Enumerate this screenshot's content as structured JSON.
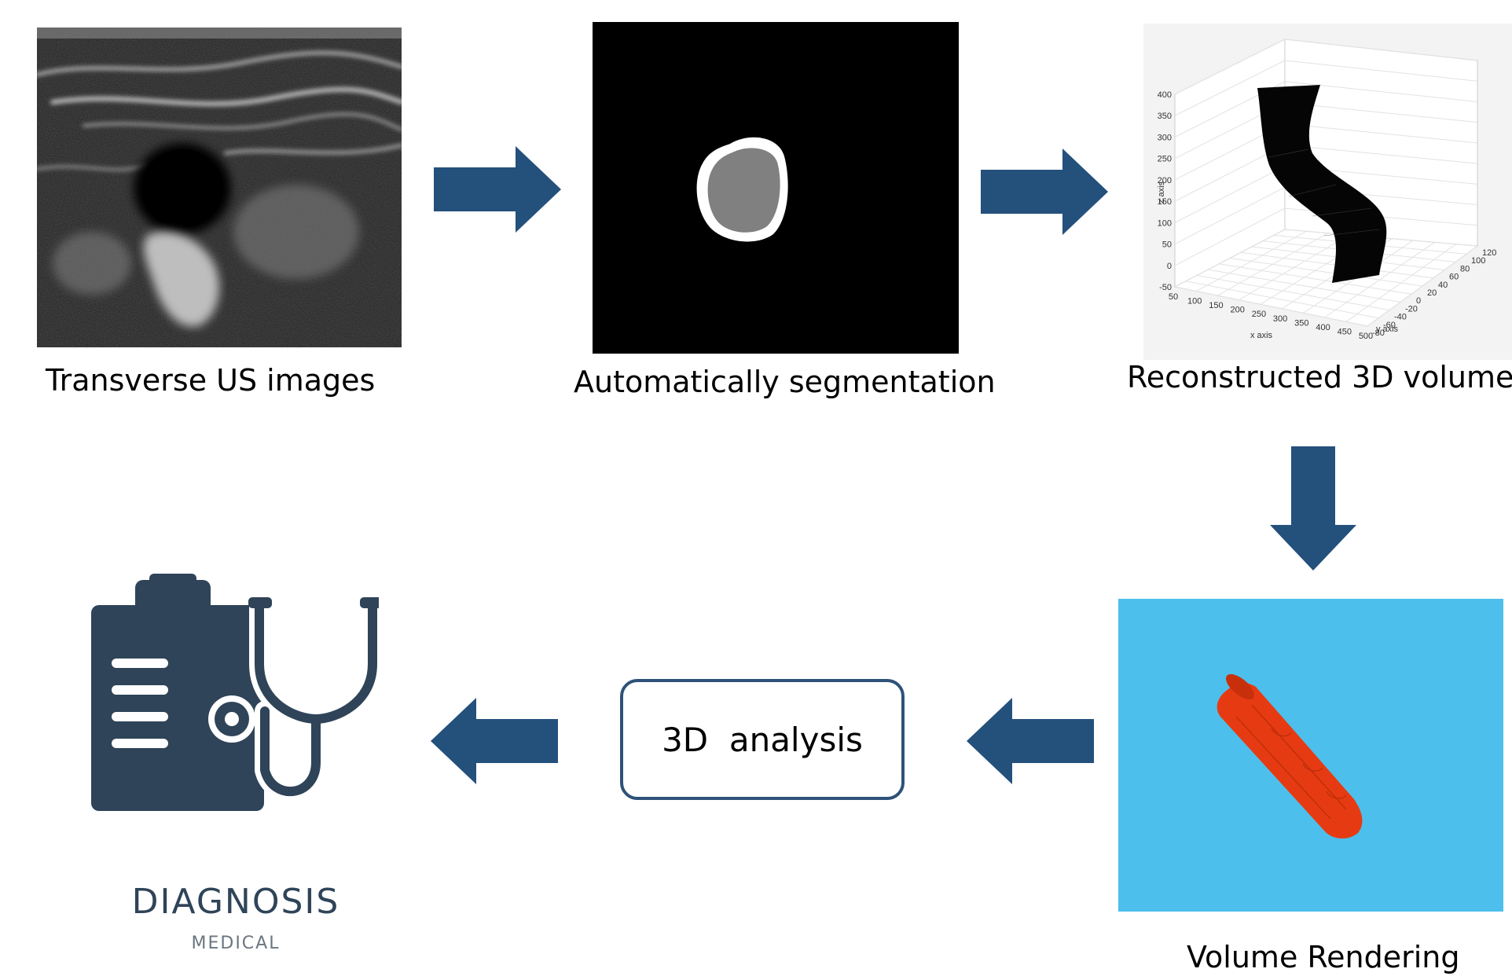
{
  "steps": {
    "us": {
      "caption": "Transverse US images"
    },
    "seg": {
      "caption": "Automatically segmentation"
    },
    "recon": {
      "caption": "Reconstructed 3D volume",
      "z_ticks": [
        "400",
        "350",
        "300",
        "250",
        "200",
        "150",
        "100",
        "50",
        "0",
        "-50"
      ],
      "z_label": "z axis",
      "x_ticks": [
        "50",
        "100",
        "150",
        "200",
        "250",
        "300",
        "350",
        "400",
        "450",
        "500"
      ],
      "x_label": "x axis",
      "y_ticks": [
        "-80",
        "-60",
        "-40",
        "-20",
        "0",
        "20",
        "40",
        "60",
        "80",
        "100",
        "120"
      ],
      "y_label": "y axis"
    },
    "render": {
      "caption": "Volume Rendering"
    },
    "analysis": {
      "label": "3D  analysis"
    },
    "diagnosis": {
      "title": "DIAGNOSIS",
      "subtitle": "MEDICAL"
    }
  },
  "colors": {
    "arrow": "#24507c",
    "render_bg": "#4dbfec",
    "vessel": "#e63b12",
    "box_border": "#2e5279",
    "icon": "#2f4458"
  }
}
